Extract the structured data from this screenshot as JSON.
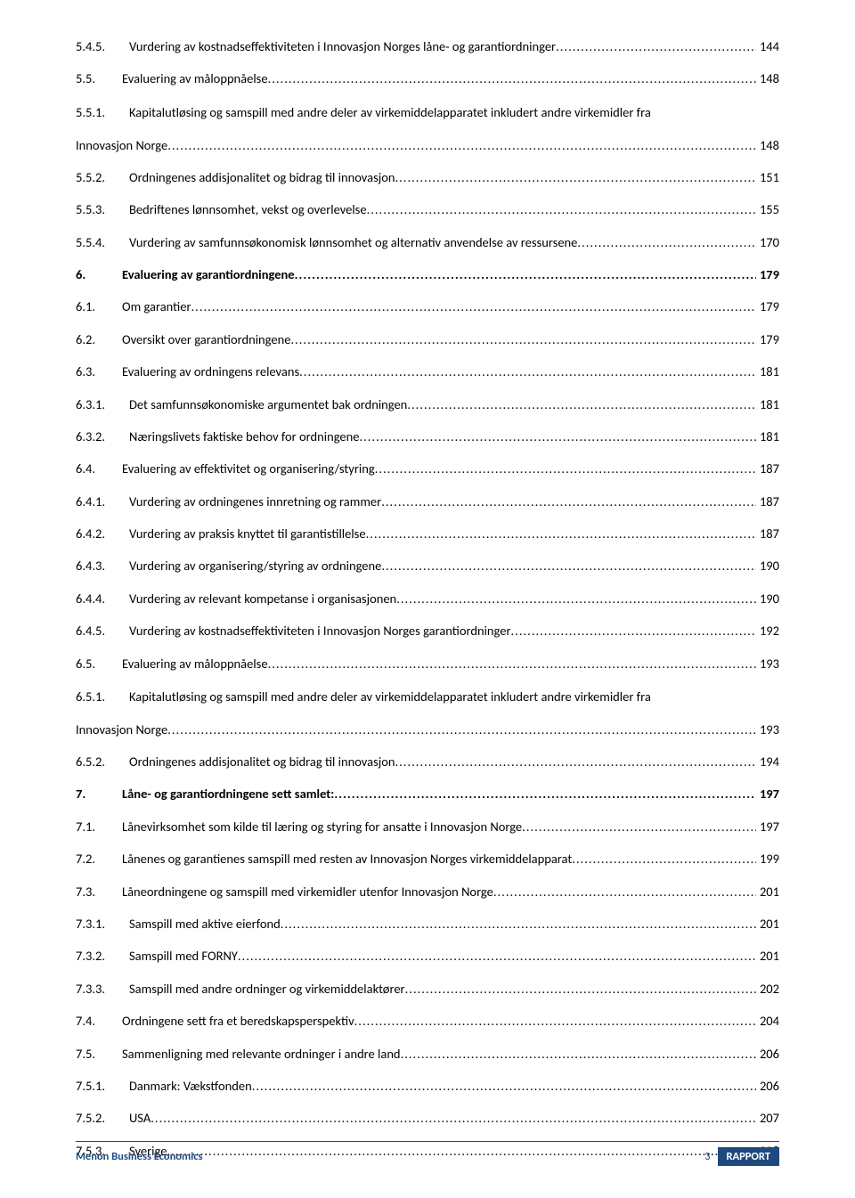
{
  "toc": [
    {
      "num": "5.4.5.",
      "title": "Vurdering av kostnadseffektiviteten i Innovasjon Norges låne- og garantiordninger",
      "page": "144",
      "sub": true
    },
    {
      "num": "5.5.",
      "title": "Evaluering av måloppnåelse",
      "page": "148"
    },
    {
      "num": "5.5.1.",
      "title_line1": "Kapitalutløsing og samspill med andre deler av virkemiddelapparatet inkludert andre virkemidler fra",
      "title_line2": "Innovasjon Norge",
      "page": "148",
      "sub": true,
      "multi": true
    },
    {
      "num": "5.5.2.",
      "title": "Ordningenes addisjonalitet og bidrag til innovasjon",
      "page": "151",
      "sub": true
    },
    {
      "num": "5.5.3.",
      "title": "Bedriftenes lønnsomhet, vekst og overlevelse",
      "page": "155",
      "sub": true
    },
    {
      "num": "5.5.4.",
      "title": "Vurdering av samfunnsøkonomisk lønnsomhet og alternativ anvendelse av ressursene",
      "page": "170",
      "sub": true
    },
    {
      "num": "6.",
      "title": "Evaluering av garantiordningene",
      "page": "179",
      "bold": true
    },
    {
      "num": "6.1.",
      "title": "Om garantier",
      "page": "179"
    },
    {
      "num": "6.2.",
      "title": "Oversikt over garantiordningene",
      "page": "179"
    },
    {
      "num": "6.3.",
      "title": "Evaluering av ordningens relevans",
      "page": "181"
    },
    {
      "num": "6.3.1.",
      "title": "Det samfunnsøkonomiske argumentet bak ordningen",
      "page": "181",
      "sub": true
    },
    {
      "num": "6.3.2.",
      "title": "Næringslivets faktiske behov for ordningene",
      "page": "181",
      "sub": true
    },
    {
      "num": "6.4.",
      "title": "Evaluering av effektivitet og organisering/styring",
      "page": "187"
    },
    {
      "num": "6.4.1.",
      "title": "Vurdering av ordningenes innretning og rammer",
      "page": "187",
      "sub": true
    },
    {
      "num": "6.4.2.",
      "title": "Vurdering av praksis knyttet til garantistillelse",
      "page": "187",
      "sub": true
    },
    {
      "num": "6.4.3.",
      "title": "Vurdering av organisering/styring av ordningene",
      "page": "190",
      "sub": true
    },
    {
      "num": "6.4.4.",
      "title": "Vurdering av relevant kompetanse i organisasjonen",
      "page": "190",
      "sub": true
    },
    {
      "num": "6.4.5.",
      "title": "Vurdering av kostnadseffektiviteten i Innovasjon Norges garantiordninger",
      "page": "192",
      "sub": true
    },
    {
      "num": "6.5.",
      "title": "Evaluering av måloppnåelse",
      "page": "193"
    },
    {
      "num": "6.5.1.",
      "title_line1": "Kapitalutløsing og samspill med andre deler av virkemiddelapparatet inkludert andre virkemidler fra",
      "title_line2": "Innovasjon Norge",
      "page": "193",
      "sub": true,
      "multi": true
    },
    {
      "num": "6.5.2.",
      "title": "Ordningenes addisjonalitet og bidrag til innovasjon",
      "page": "194",
      "sub": true
    },
    {
      "num": "7.",
      "title": "Låne- og garantiordningene sett samlet:",
      "page": "197",
      "bold": true
    },
    {
      "num": "7.1.",
      "title": "Lånevirksomhet som kilde til læring og styring for ansatte i Innovasjon Norge",
      "page": "197"
    },
    {
      "num": "7.2.",
      "title": "Lånenes og garantienes samspill med resten av Innovasjon Norges virkemiddelapparat",
      "page": "199"
    },
    {
      "num": "7.3.",
      "title": "Låneordningene og samspill med virkemidler utenfor Innovasjon Norge",
      "page": "201"
    },
    {
      "num": "7.3.1.",
      "title": "Samspill med aktive eierfond",
      "page": "201",
      "sub": true
    },
    {
      "num": "7.3.2.",
      "title": "Samspill med FORNY",
      "page": "201",
      "sub": true
    },
    {
      "num": "7.3.3.",
      "title": "Samspill med andre ordninger og virkemiddelaktører",
      "page": "202",
      "sub": true
    },
    {
      "num": "7.4.",
      "title": "Ordningene sett fra et beredskapsperspektiv",
      "page": "204"
    },
    {
      "num": "7.5.",
      "title": "Sammenligning med relevante ordninger i andre land",
      "page": "206"
    },
    {
      "num": "7.5.1.",
      "title": "Danmark: Vækstfonden",
      "page": "206",
      "sub": true
    },
    {
      "num": "7.5.2.",
      "title": "USA",
      "page": "207",
      "sub": true
    },
    {
      "num": "7.5.3.",
      "title": "Sverige",
      "page": "208",
      "sub": true
    }
  ],
  "footer": {
    "left": "Menon Business Economics",
    "page_number": "3",
    "badge": "RAPPORT"
  },
  "colors": {
    "brand": "#1f497d",
    "text": "#000000",
    "background": "#ffffff"
  }
}
